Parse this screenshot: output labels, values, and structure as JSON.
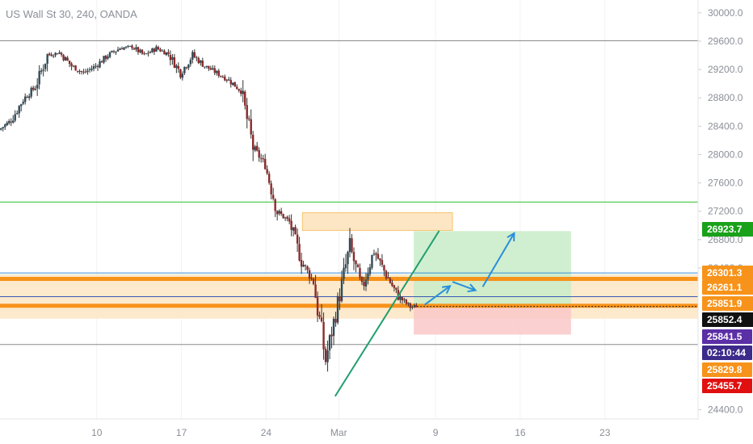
{
  "chart_data": {
    "type": "candlestick",
    "title": "US Wall St 30, 240, OANDA",
    "y_axis": {
      "ticks": [
        24400,
        26400,
        26800,
        27200,
        27600,
        28000,
        28400,
        28800,
        29200,
        29600,
        30000
      ],
      "tick_labels": [
        "24400.0",
        "26400.0",
        "26800.0",
        "27200.0",
        "27600.0",
        "28000.0",
        "28400.0",
        "28800.0",
        "29200.0",
        "29600.0",
        "30000.0"
      ],
      "range": [
        24270,
        30180
      ]
    },
    "x_axis": {
      "tick_labels": [
        "10",
        "17",
        "24",
        "Mar",
        "9",
        "16",
        "23"
      ],
      "ticks_day_index": [
        8,
        15,
        22,
        28,
        36,
        43,
        50
      ],
      "range_day_index": [
        0,
        57.7
      ]
    },
    "price_tags": [
      {
        "value": "26923.7",
        "color": "#1aa11a"
      },
      {
        "value": "26301.3",
        "color": "#f7931a"
      },
      {
        "value": "26261.1",
        "color": "#f7931a"
      },
      {
        "value": "25851.9",
        "color": "#f7931a"
      },
      {
        "value": "25852.4",
        "color": "#111111"
      },
      {
        "value": "25841.5",
        "color": "#5b2fa6"
      },
      {
        "value": "02:10:44",
        "color": "#3d2a8a"
      },
      {
        "value": "25829.8",
        "color": "#f7931a"
      },
      {
        "value": "25455.7",
        "color": "#e01010"
      }
    ],
    "horizontal_lines": [
      {
        "price": 29605,
        "color": "#8c8c8c"
      },
      {
        "price": 27330,
        "color": "#2bbf2b"
      },
      {
        "price": 26330,
        "color": "#3a8fd6"
      },
      {
        "price": 25995,
        "color": "#3b57b5"
      },
      {
        "price": 25320,
        "color": "#8c8c8c"
      }
    ],
    "zones": [
      {
        "from_day": 25,
        "to_day": 37.4,
        "low": 26930,
        "high": 27180,
        "fill": "#fde6c4",
        "stroke": "#f5c56a"
      },
      {
        "from_day": 0,
        "to_day": 57.7,
        "low": 25685,
        "high": 26310,
        "fill": "#fde9cc",
        "stroke": ""
      }
    ],
    "bands": [
      {
        "price": 26245,
        "color": "#f7931a",
        "width": 5
      },
      {
        "price": 25867,
        "color": "#f7931a",
        "width": 5
      }
    ],
    "position_tool": {
      "from_day": 34.2,
      "to_day": 47.2,
      "entry": 25855,
      "target": 26920,
      "stop": 25460,
      "target_fill": "#c8ecc8",
      "stop_fill": "#f9c8c8"
    },
    "trendline": {
      "from_day": 27.7,
      "from_price": 24590,
      "to_day": 36.3,
      "to_price": 26925,
      "color": "#1f9e6e"
    },
    "arrows": [
      {
        "x0": 35.1,
        "y0": 25880,
        "x1": 37.2,
        "y1": 26145
      },
      {
        "x0": 37.4,
        "y0": 26205,
        "x1": 39.3,
        "y1": 26085
      },
      {
        "x0": 39.9,
        "y0": 26135,
        "x1": 42.5,
        "y1": 26890
      }
    ],
    "arrow_color": "#2a8fdb",
    "candle_colors": {
      "up": "#2f4a57",
      "down": "#8b2a2a",
      "wick": "#333333"
    },
    "series": [
      {
        "anchor_days": [
          0,
          1,
          2,
          3,
          4,
          5,
          6,
          7,
          8,
          9,
          10,
          11,
          12,
          13,
          14,
          15,
          16,
          17,
          18,
          19,
          20,
          21,
          22,
          23,
          24,
          25,
          26,
          27,
          28,
          29,
          30,
          31,
          32,
          33,
          34,
          34.5
        ],
        "anchor_prices": [
          28350,
          28480,
          28780,
          28950,
          29400,
          29440,
          29250,
          29150,
          29250,
          29400,
          29500,
          29520,
          29400,
          29500,
          29420,
          29150,
          29400,
          29250,
          29150,
          29050,
          28900,
          28100,
          27850,
          27200,
          27050,
          26500,
          26200,
          25100,
          25900,
          26700,
          26100,
          26650,
          26300,
          26000,
          25850,
          25860
        ]
      }
    ]
  }
}
